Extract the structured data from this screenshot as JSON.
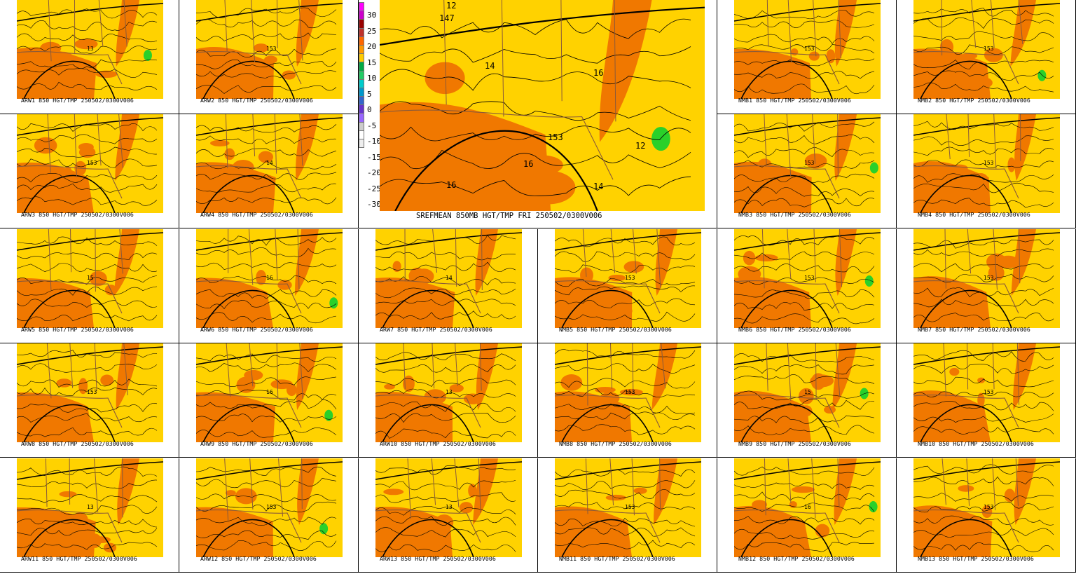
{
  "center": {
    "label": "SREFMEAN 850MB HGT/TMP FRI 250502/0300V006",
    "contour_labels": [
      "147",
      "12",
      "14",
      "16",
      "153",
      "16",
      "16",
      "14",
      "12"
    ]
  },
  "colorbar": {
    "tick_labels": [
      "30",
      "25",
      "20",
      "15",
      "10",
      "5",
      "0",
      "-5",
      "-10",
      "-15",
      "-20",
      "-25",
      "-30"
    ],
    "colors": [
      "#ff00ff",
      "#cc00cc",
      "#990000",
      "#c0302a",
      "#ff6600",
      "#ff9900",
      "#ffcc00",
      "#00aa44",
      "#22cc66",
      "#00cccc",
      "#0099cc",
      "#3366cc",
      "#6633cc",
      "#9966ff",
      "#cccccc",
      "#ffffff",
      "#eeeeee"
    ]
  },
  "colors": {
    "yellow": "#ffd200",
    "orange": "#f07800",
    "green": "#2ad02a",
    "contour": "#000000",
    "border": "#8a5a3a"
  },
  "panels": [
    {
      "label": "ARW1 850 HGT/TMP 250502/0300V006",
      "num": "13"
    },
    {
      "label": "ARW2 850 HGT/TMP 250502/0300V006",
      "num": "153"
    },
    {
      "label": "NMB1 850 HGT/TMP 250502/0300V006",
      "num": "153"
    },
    {
      "label": "NMB2 850 HGT/TMP 250502/0300V006",
      "num": "153"
    },
    {
      "label": "ARW3 850 HGT/TMP 250502/0300V006",
      "num": "153"
    },
    {
      "label": "ARW4 850 HGT/TMP 250502/0300V006",
      "num": "14"
    },
    {
      "label": "NMB3 850 HGT/TMP 250502/0300V006",
      "num": "153"
    },
    {
      "label": "NMB4 850 HGT/TMP 250502/0300V006",
      "num": "153"
    },
    {
      "label": "ARW5 850 HGT/TMP 250502/0300V006",
      "num": "15"
    },
    {
      "label": "ARW6 850 HGT/TMP 250502/0300V006",
      "num": "16"
    },
    {
      "label": "ARW7 850 HGT/TMP 250502/0300V006",
      "num": "14"
    },
    {
      "label": "NMB5 850 HGT/TMP 250502/0300V006",
      "num": "153"
    },
    {
      "label": "NMB6 850 HGT/TMP 250502/0300V006",
      "num": "153"
    },
    {
      "label": "NMB7 850 HGT/TMP 250502/0300V006",
      "num": "153"
    },
    {
      "label": "ARW8 850 HGT/TMP 250502/0300V006",
      "num": "153"
    },
    {
      "label": "ARW9 850 HGT/TMP 250502/0300V006",
      "num": "16"
    },
    {
      "label": "ARW10 850 HGT/TMP 250502/0300V006",
      "num": "13"
    },
    {
      "label": "NMB8 850 HGT/TMP 250502/0300V006",
      "num": "153"
    },
    {
      "label": "NMB9 850 HGT/TMP 250502/0300V006",
      "num": "15"
    },
    {
      "label": "NMB10 850 HGT/TMP 250502/0300V006",
      "num": "153"
    },
    {
      "label": "ARW11 850 HGT/TMP 250502/0300V006",
      "num": "13"
    },
    {
      "label": "ARW12 850 HGT/TMP 250502/0300V006",
      "num": "153"
    },
    {
      "label": "ARW13 850 HGT/TMP 250502/0300V006",
      "num": "13"
    },
    {
      "label": "NMB11 850 HGT/TMP 250502/0300V006",
      "num": "153"
    },
    {
      "label": "NMB12 850 HGT/TMP 250502/0300V006",
      "num": "16"
    },
    {
      "label": "NMB13 850 HGT/TMP 250502/0300V006",
      "num": "153"
    }
  ]
}
